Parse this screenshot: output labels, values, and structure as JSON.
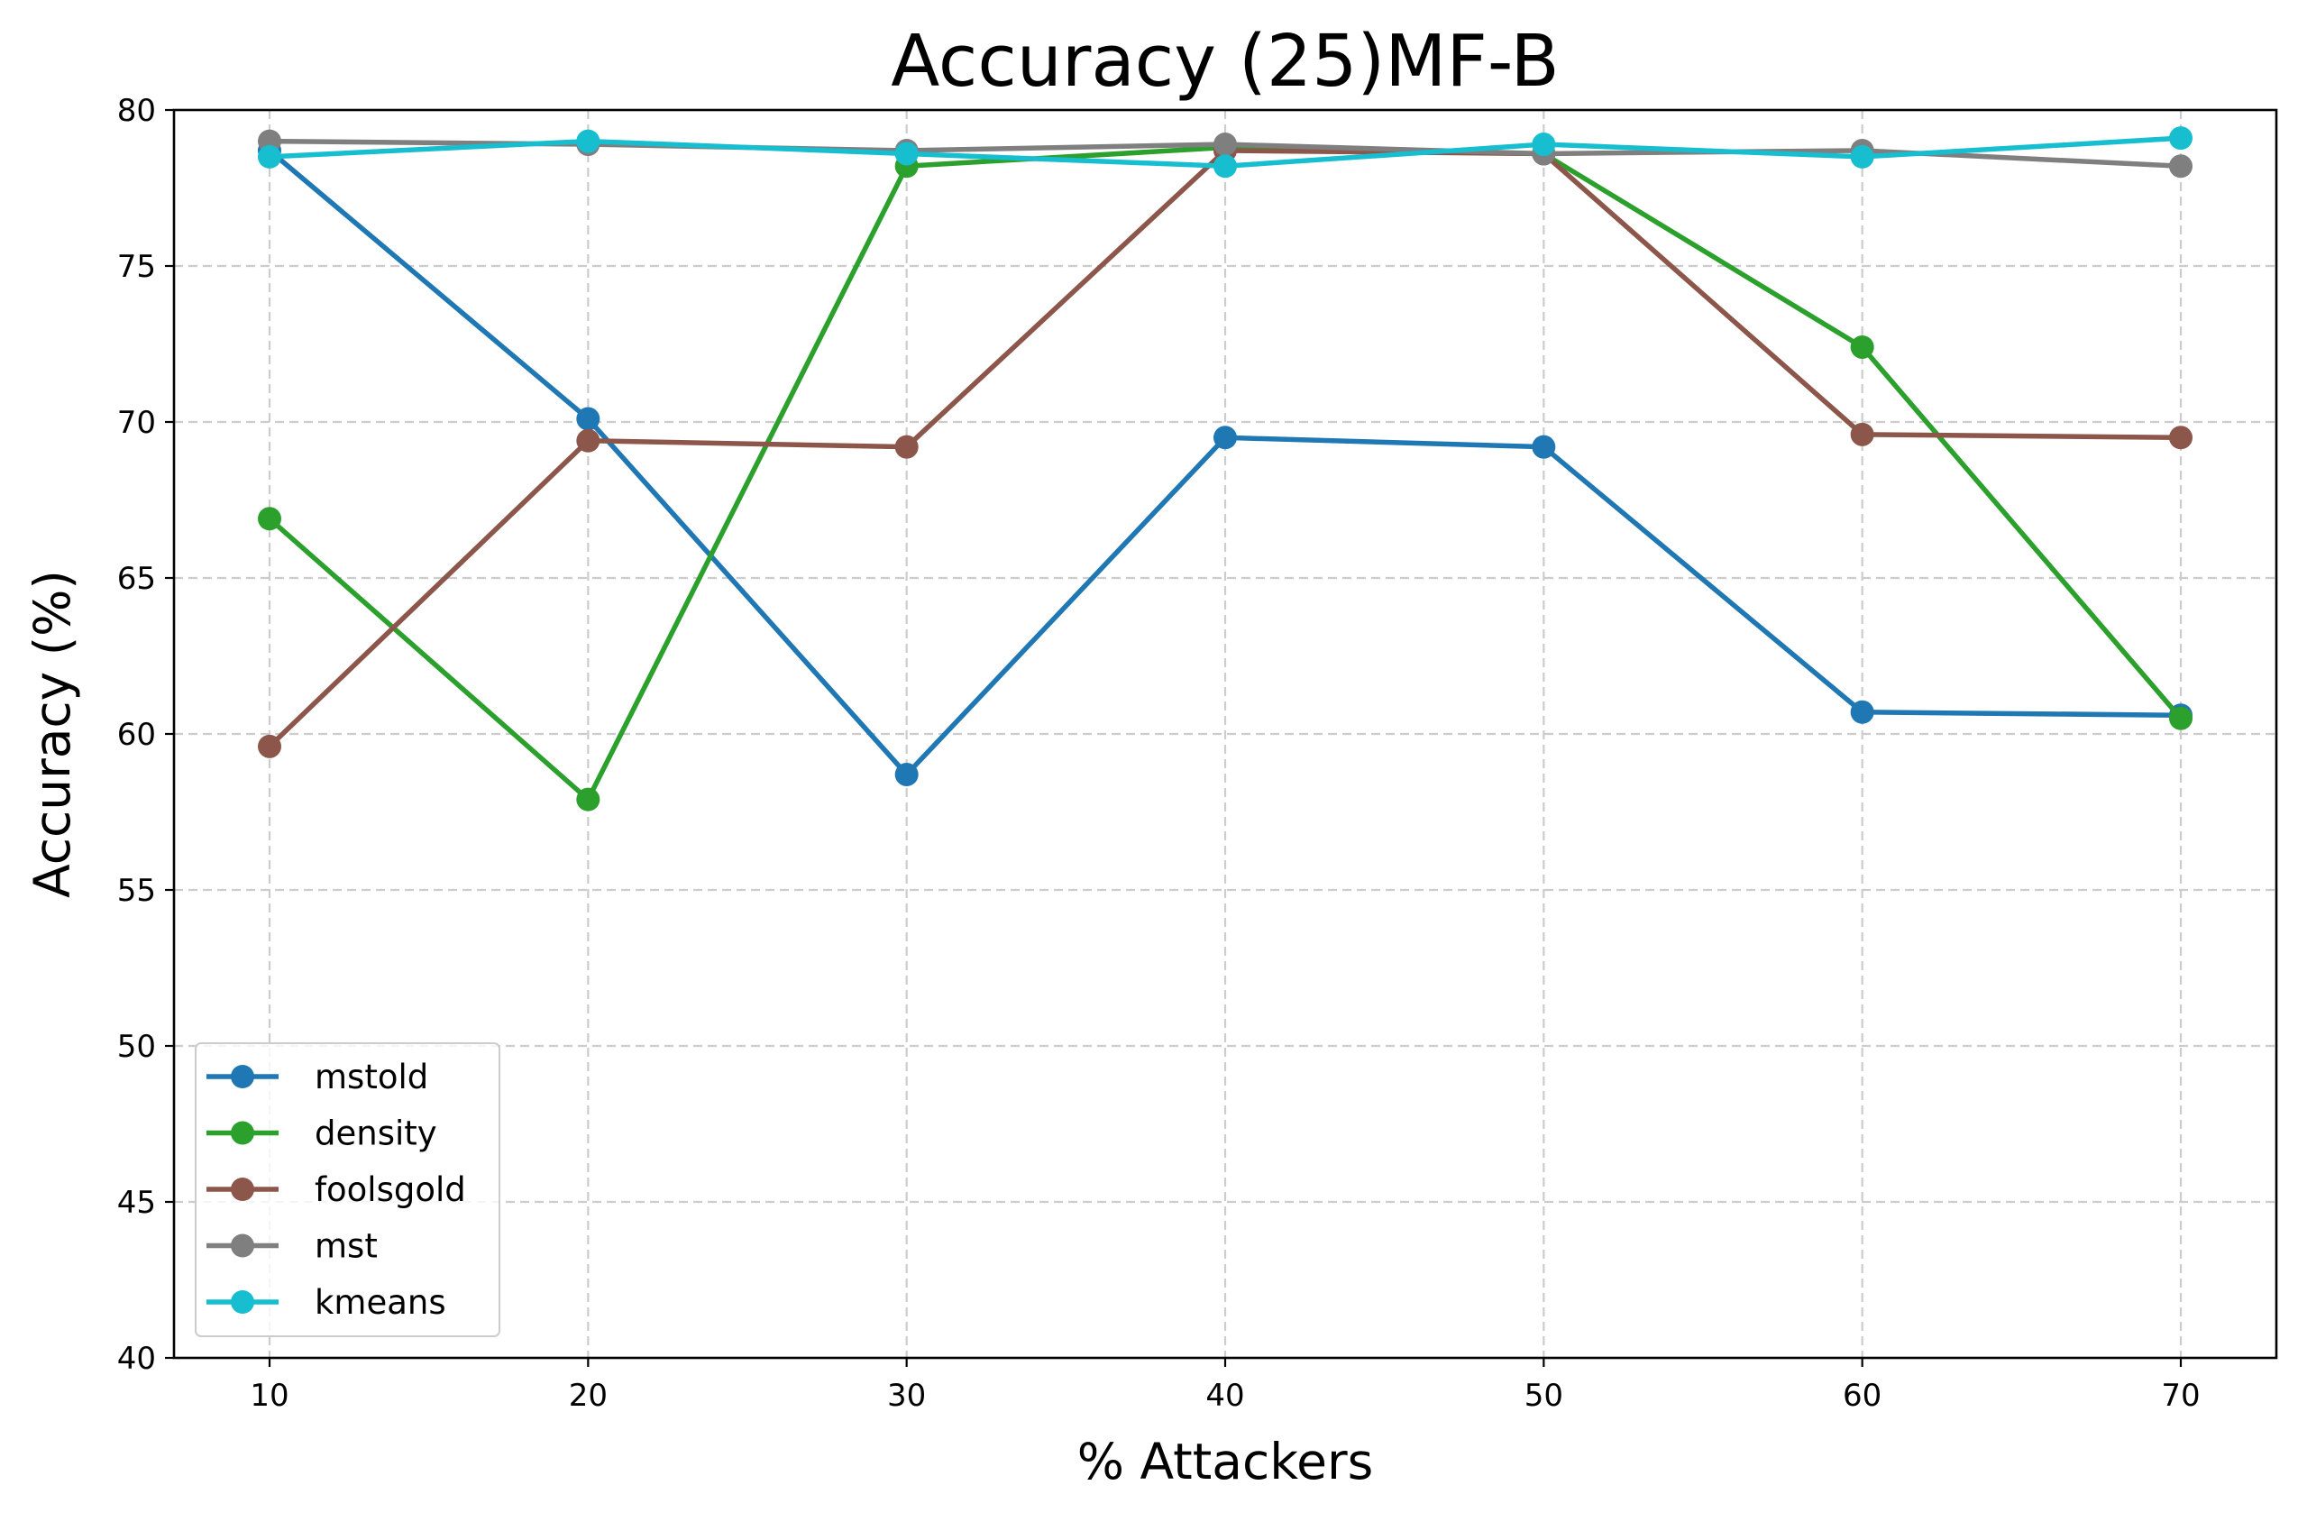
{
  "chart_data": {
    "type": "line",
    "title": "Accuracy (25)MF-B",
    "xlabel": "% Attackers",
    "ylabel": "Accuracy (%)",
    "x": [
      10,
      20,
      30,
      40,
      50,
      60,
      70
    ],
    "xlim": [
      7,
      73
    ],
    "ylim": [
      40,
      80
    ],
    "xticks": [
      10,
      20,
      30,
      40,
      50,
      60,
      70
    ],
    "yticks": [
      40,
      45,
      50,
      55,
      60,
      65,
      70,
      75,
      80
    ],
    "grid": true,
    "legend_position": "lower-left",
    "series": [
      {
        "name": "mstold",
        "color": "#1f77b4",
        "values": [
          78.7,
          70.1,
          58.7,
          69.5,
          69.2,
          60.7,
          60.6
        ]
      },
      {
        "name": "density",
        "color": "#2ca02c",
        "values": [
          66.9,
          57.9,
          78.2,
          78.8,
          78.6,
          72.4,
          60.5
        ]
      },
      {
        "name": "foolsgold",
        "color": "#8c564b",
        "values": [
          59.6,
          69.4,
          69.2,
          78.7,
          78.6,
          69.6,
          69.5
        ]
      },
      {
        "name": "mst",
        "color": "#7f7f7f",
        "values": [
          79.0,
          78.9,
          78.7,
          78.9,
          78.6,
          78.7,
          78.2
        ]
      },
      {
        "name": "kmeans",
        "color": "#17becf",
        "values": [
          78.5,
          79.0,
          78.6,
          78.2,
          78.9,
          78.5,
          79.1
        ]
      }
    ]
  }
}
